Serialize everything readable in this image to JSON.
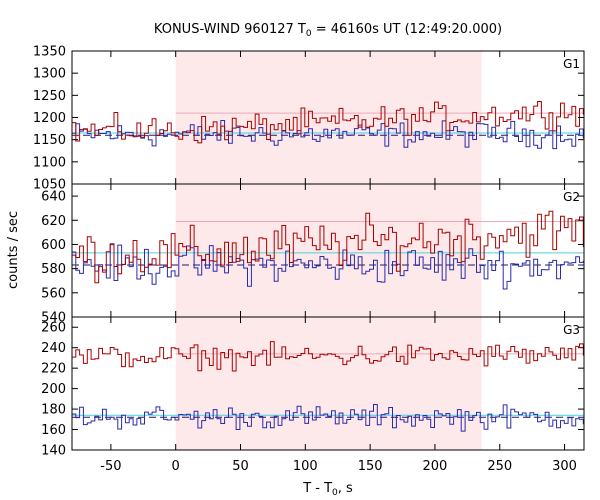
{
  "chart_data": {
    "type": "line",
    "title": "KONUS-WIND 960127 T",
    "title_sub": "0",
    "title_rest": " = 46160s UT (12:49:20.000)",
    "xlabel": "T - T",
    "xlabel_sub": "0",
    "xlabel_rest": ", s",
    "ylabel": "counts / sec",
    "xlim": [
      -80,
      315
    ],
    "xticks": [
      -50,
      0,
      50,
      100,
      150,
      200,
      250,
      300
    ],
    "highlight_interval": [
      0,
      236
    ],
    "highlight_color": "#fde9ea",
    "series_colors": {
      "red": "#aa0000",
      "blue": "#2a2aaa",
      "cyan": "#4ccfe0",
      "pink": "#f0a8b8",
      "dash": "#1a1a6e"
    },
    "panels": [
      {
        "label": "G1",
        "ylim": [
          1050,
          1350
        ],
        "yticks": [
          1050,
          1100,
          1150,
          1200,
          1250,
          1300,
          1350
        ],
        "red_base_early": 1170,
        "red_base_late": 1215,
        "red_amp": 22,
        "blue_base": 1162,
        "blue_amp": 20,
        "cyan_level": 1165,
        "pink_level": 1210,
        "dash_level": 1160
      },
      {
        "label": "G2",
        "ylim": [
          540,
          650
        ],
        "yticks": [
          540,
          560,
          580,
          600,
          620,
          640
        ],
        "red_base_early": 592,
        "red_base_late": 612,
        "red_amp": 14,
        "blue_base": 583,
        "blue_amp": 11,
        "cyan_level": 593,
        "pink_level": 619,
        "dash_level": 583
      },
      {
        "label": "G3",
        "ylim": [
          140,
          270
        ],
        "yticks": [
          140,
          160,
          180,
          200,
          220,
          240,
          260
        ],
        "red_base_early": 231,
        "red_base_late": 233,
        "red_amp": 8,
        "blue_base": 172,
        "blue_amp": 8,
        "cyan_level": 174,
        "pink_level": 234,
        "dash_level": 172
      }
    ]
  }
}
